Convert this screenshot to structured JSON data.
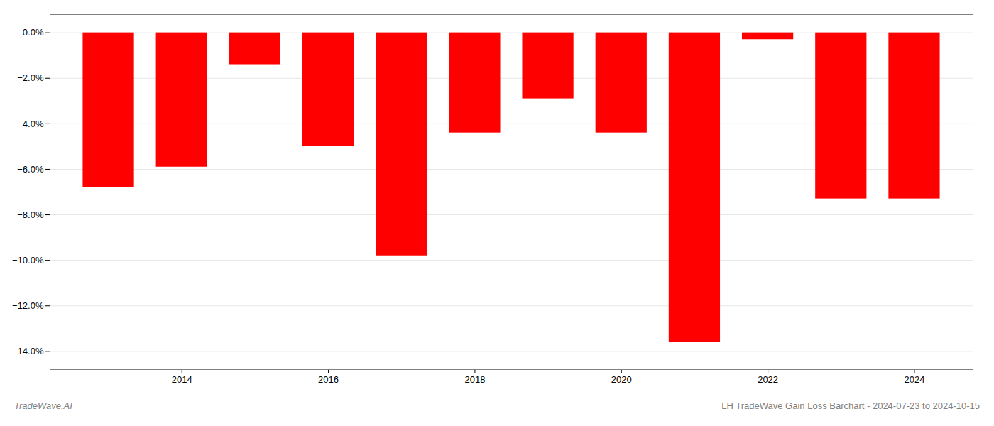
{
  "chart_data": {
    "type": "bar",
    "title": "LH TradeWave Gain Loss Barchart - 2024-07-23 to 2024-10-15",
    "annotations": [
      "TradeWave.AI"
    ],
    "x": [
      2013,
      2014,
      2015,
      2016,
      2017,
      2018,
      2019,
      2020,
      2021,
      2022,
      2023,
      2024
    ],
    "values": [
      -6.8,
      -5.9,
      -1.4,
      -5.0,
      -9.8,
      -4.4,
      -2.9,
      -4.4,
      -13.6,
      -0.3,
      -7.3,
      -7.3
    ],
    "color": "#ff0000",
    "xlim": [
      2012.2,
      2024.8
    ],
    "xticks": [
      2014,
      2016,
      2018,
      2020,
      2022,
      2024
    ],
    "ylim": [
      -14.8,
      0.8
    ],
    "yticks": [
      {
        "value": 0.0,
        "label": "0.0%"
      },
      {
        "value": -2.0,
        "label": "−2.0%"
      },
      {
        "value": -4.0,
        "label": "−4.0%"
      },
      {
        "value": -6.0,
        "label": "−6.0%"
      },
      {
        "value": -8.0,
        "label": "−8.0%"
      },
      {
        "value": -10.0,
        "label": "−10.0%"
      },
      {
        "value": -12.0,
        "label": "−12.0%"
      },
      {
        "value": -14.0,
        "label": "−14.0%"
      }
    ],
    "grid": true
  }
}
